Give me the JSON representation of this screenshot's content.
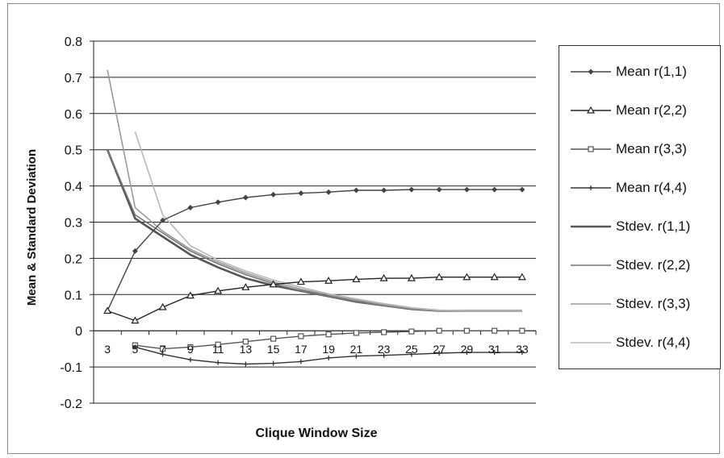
{
  "chart_data": {
    "type": "line",
    "title": "",
    "xlabel": "Clique Window Size",
    "ylabel": "Mean & Standard Deviation",
    "x": [
      3,
      5,
      7,
      9,
      11,
      13,
      15,
      17,
      19,
      21,
      23,
      25,
      27,
      29,
      31,
      33
    ],
    "x_tick_labels": [
      "3",
      "5",
      "7",
      "9",
      "11",
      "13",
      "15",
      "17",
      "19",
      "21",
      "23",
      "25",
      "27",
      "29",
      "31",
      "33"
    ],
    "ylim": [
      -0.2,
      0.8
    ],
    "y_ticks": [
      0.8,
      0.7,
      0.6,
      0.5,
      0.4,
      0.3,
      0.2,
      0.1,
      0,
      -0.1,
      -0.2
    ],
    "y_tick_labels": [
      "0.8",
      "0.7",
      "0.6",
      "0.5",
      "0.4",
      "0.3",
      "0.2",
      "0.1",
      "0",
      "-0.1",
      "-0.2"
    ],
    "grid": "horizontal",
    "legend_position": "right",
    "series": [
      {
        "name": "Mean r(1,1)",
        "marker": "diamond",
        "color": "#444444",
        "values": [
          0.055,
          0.22,
          0.305,
          0.34,
          0.355,
          0.368,
          0.376,
          0.38,
          0.383,
          0.388,
          0.388,
          0.39,
          0.39,
          0.39,
          0.39,
          0.39
        ]
      },
      {
        "name": "Mean r(2,2)",
        "marker": "triangle",
        "color": "#222222",
        "values": [
          0.055,
          0.028,
          0.065,
          0.097,
          0.11,
          0.12,
          0.128,
          0.135,
          0.138,
          0.142,
          0.145,
          0.145,
          0.148,
          0.148,
          0.148,
          0.148
        ]
      },
      {
        "name": "Mean r(3,3)",
        "marker": "square",
        "color": "#555555",
        "values": [
          null,
          -0.04,
          -0.05,
          -0.045,
          -0.038,
          -0.03,
          -0.022,
          -0.015,
          -0.01,
          -0.006,
          -0.004,
          -0.002,
          0,
          0,
          0,
          0
        ]
      },
      {
        "name": "Mean r(4,4)",
        "marker": "cross",
        "color": "#333333",
        "values": [
          null,
          -0.045,
          -0.065,
          -0.08,
          -0.088,
          -0.092,
          -0.09,
          -0.085,
          -0.075,
          -0.07,
          -0.068,
          -0.065,
          -0.062,
          -0.06,
          -0.06,
          -0.06
        ]
      },
      {
        "name": "Stdev. r(1,1)",
        "marker": "none",
        "color": "#555555",
        "values": [
          0.5,
          0.31,
          0.26,
          0.21,
          0.175,
          0.145,
          0.125,
          0.11,
          0.095,
          0.08,
          0.07,
          0.06,
          0.055,
          0.055,
          0.055,
          0.055
        ]
      },
      {
        "name": "Stdev. r(2,2)",
        "marker": "none",
        "color": "#777777",
        "values": [
          0.5,
          0.32,
          0.27,
          0.22,
          0.185,
          0.155,
          0.13,
          0.11,
          0.095,
          0.08,
          0.07,
          0.06,
          0.055,
          0.055,
          0.055,
          0.055
        ]
      },
      {
        "name": "Stdev. r(3,3)",
        "marker": "none",
        "color": "#999999",
        "values": [
          0.72,
          0.34,
          0.275,
          0.225,
          0.19,
          0.16,
          0.135,
          0.115,
          0.1,
          0.085,
          0.072,
          0.062,
          0.055,
          0.055,
          0.055,
          0.055
        ]
      },
      {
        "name": "Stdev. r(4,4)",
        "marker": "none",
        "color": "#b8b8b8",
        "values": [
          null,
          0.55,
          0.32,
          0.235,
          0.195,
          0.165,
          0.14,
          0.12,
          0.102,
          0.088,
          0.075,
          0.064,
          0.057,
          0.055,
          0.055,
          0.055
        ]
      }
    ]
  }
}
